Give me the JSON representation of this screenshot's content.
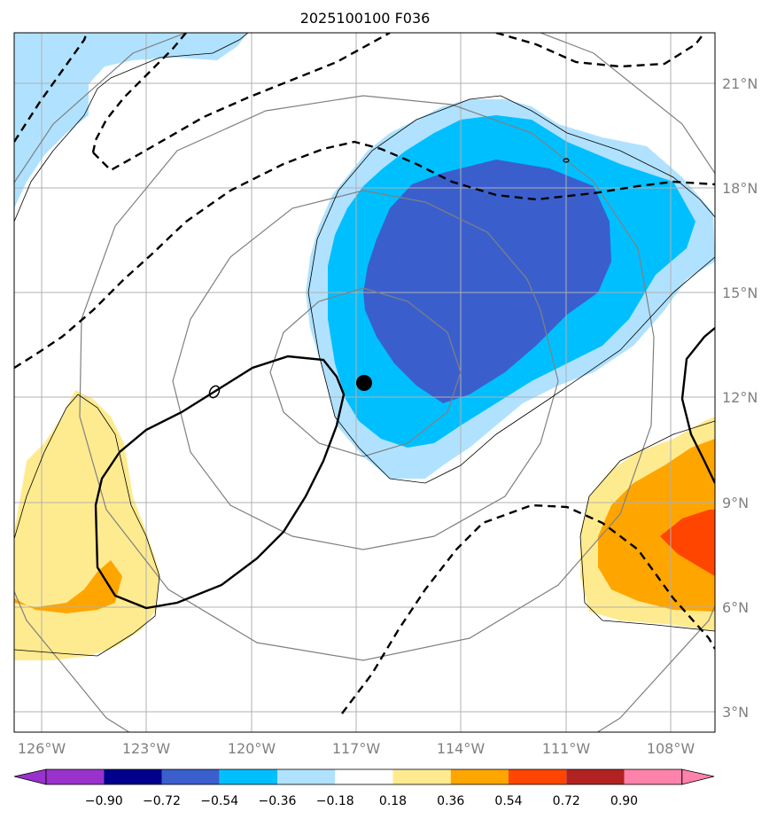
{
  "chart_data": {
    "type": "map",
    "title": "2025100100 F036",
    "x_ticks": [
      "126°W",
      "123°W",
      "120°W",
      "117°W",
      "114°W",
      "111°W",
      "108°W"
    ],
    "y_ticks": [
      "21°N",
      "18°N",
      "15°N",
      "12°N",
      "9°N",
      "6°N",
      "3°N"
    ],
    "colorbar": {
      "ticks": [
        "−0.90",
        "−0.72",
        "−0.54",
        "−0.36",
        "−0.18",
        "0.18",
        "0.36",
        "0.54",
        "0.72",
        "0.90"
      ],
      "colors": [
        "#9932cc",
        "#00008b",
        "#3a5fcd",
        "#00bfff",
        "#b0e2ff",
        "#ffffff",
        "#ffeb8f",
        "#ffa500",
        "#ff4500",
        "#b22222",
        "#ff82ab"
      ],
      "extend": "both"
    },
    "storm_center": {
      "lon": -116.8,
      "lat": 12.4
    },
    "colors": {
      "coast": "#000000",
      "range_rings": "#808080",
      "grid": "#b0b0b0"
    }
  }
}
